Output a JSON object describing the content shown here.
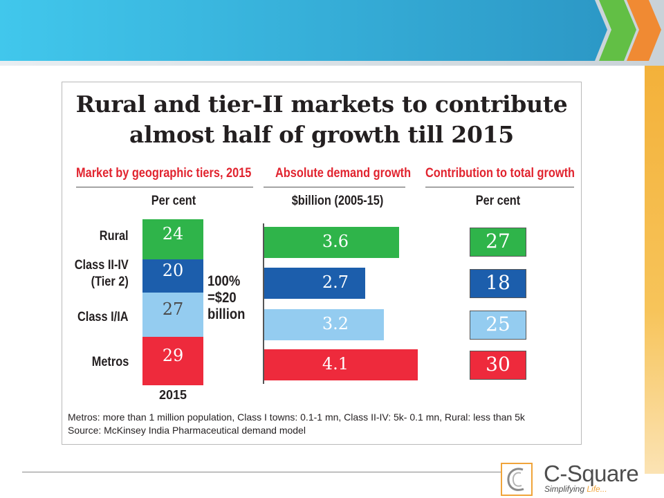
{
  "slide": {
    "colors": {
      "banner_blue": "#3ec4ea",
      "arrow_green": "#62bf45",
      "arrow_orange": "#f08a33",
      "side_orange": "#f5b335"
    }
  },
  "chart_data": [
    {
      "type": "bar",
      "stacked": true,
      "title": "Rural and tier-II markets to contribute almost half of growth till 2015",
      "title_lines": [
        "Rural and tier-II markets to contribute",
        "almost half of growth till 2015"
      ],
      "subtitle": "Market by geographic tiers, 2015",
      "unit_label": "Per cent",
      "categories": [
        "Rural",
        "Class II-IV (Tier 2)",
        "Class I/IA",
        "Metros"
      ],
      "category_lines": [
        [
          "Rural"
        ],
        [
          "Class II-IV",
          "(Tier 2)"
        ],
        [
          "Class I/IA"
        ],
        [
          "Metros"
        ]
      ],
      "values": [
        24,
        20,
        27,
        29
      ],
      "colors": [
        "#2fb44a",
        "#1c5eac",
        "#94ccf0",
        "#ee2a3c"
      ],
      "x_label": "2015",
      "annotation_lines": [
        "100%",
        "=$20",
        "billion"
      ]
    },
    {
      "type": "bar",
      "orientation": "horizontal",
      "subtitle": "Absolute demand growth",
      "unit_label": "$billion (2005-15)",
      "categories": [
        "Rural",
        "Class II-IV (Tier 2)",
        "Class I/IA",
        "Metros"
      ],
      "values": [
        3.6,
        2.7,
        3.2,
        4.1
      ],
      "colors": [
        "#2fb44a",
        "#1c5eac",
        "#94ccf0",
        "#ee2a3c"
      ]
    },
    {
      "type": "table",
      "subtitle": "Contribution to total growth",
      "unit_label": "Per cent",
      "categories": [
        "Rural",
        "Class II-IV (Tier 2)",
        "Class I/IA",
        "Metros"
      ],
      "values": [
        27,
        18,
        25,
        30
      ],
      "colors": [
        "#2fb44a",
        "#1c5eac",
        "#94ccf0",
        "#ee2a3c"
      ]
    }
  ],
  "footnotes": {
    "definition": "Metros: more than 1 million population, Class I towns: 0.1-1 mn, Class II-IV: 5k- 0.1 mn, Rural: less than 5k",
    "source": "Source: McKinsey India Pharmaceutical demand model"
  },
  "logo": {
    "name": "C-Square",
    "tagline_main": "Simplifying ",
    "tagline_accent": "Life..."
  }
}
